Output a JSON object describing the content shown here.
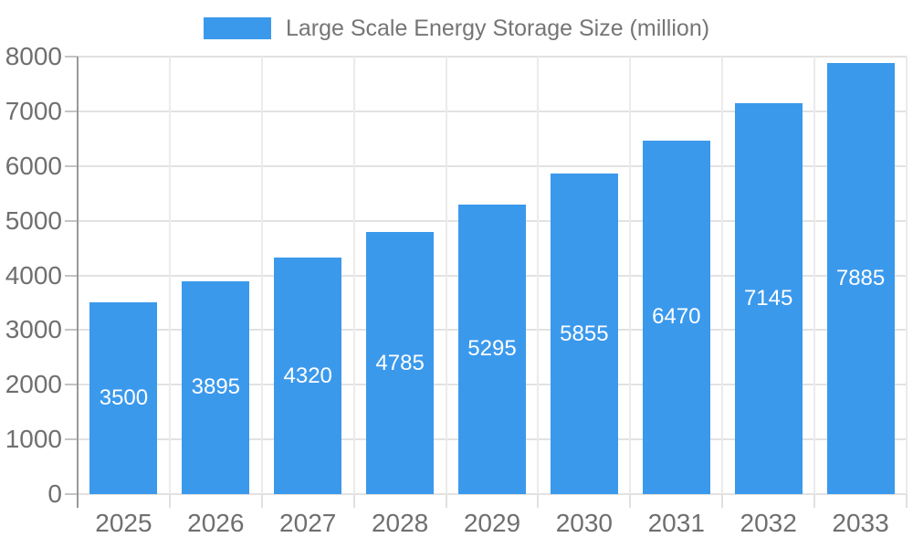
{
  "legend": {
    "label": "Large Scale Energy Storage Size (million)",
    "color": "#3B99EC"
  },
  "chart_data": {
    "type": "bar",
    "title": "",
    "categories": [
      "2025",
      "2026",
      "2027",
      "2028",
      "2029",
      "2030",
      "2031",
      "2032",
      "2033"
    ],
    "series": [
      {
        "name": "Large Scale Energy Storage Size (million)",
        "color": "#3B99EC",
        "values": [
          3500,
          3895,
          4320,
          4785,
          5295,
          5855,
          6470,
          7145,
          7885
        ]
      }
    ],
    "value_labels": [
      "3500",
      "3895",
      "4320",
      "4785",
      "5295",
      "5855",
      "6470",
      "7145",
      "7885"
    ],
    "xlabel": "",
    "ylabel": "",
    "ylim": [
      0,
      8000
    ],
    "yticks": [
      0,
      1000,
      2000,
      3000,
      4000,
      5000,
      6000,
      7000,
      8000
    ],
    "grid": true,
    "legend_position": "top-center",
    "value_label_position": "inside-center"
  }
}
